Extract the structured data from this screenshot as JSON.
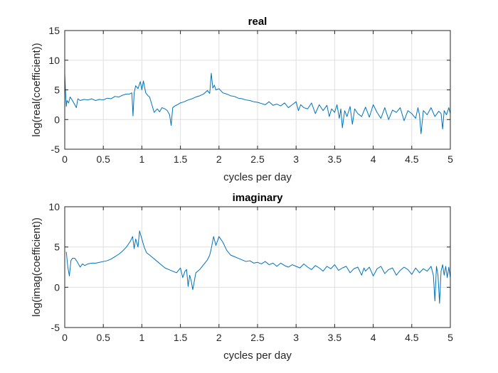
{
  "chart_data": [
    {
      "type": "line",
      "title": "real",
      "xlabel": "cycles per day",
      "ylabel": "log(real(coefficient))",
      "xlim": [
        0,
        5
      ],
      "ylim": [
        -5,
        15
      ],
      "xticks": [
        0,
        0.5,
        1,
        1.5,
        2,
        2.5,
        3,
        3.5,
        4,
        4.5,
        5
      ],
      "xtick_labels": [
        "0",
        "0.5",
        "1",
        "1.5",
        "2",
        "2.5",
        "3",
        "3.5",
        "4",
        "4.5",
        "5"
      ],
      "yticks": [
        -5,
        0,
        5,
        10,
        15
      ],
      "ytick_labels": [
        "-5",
        "0",
        "5",
        "10",
        "15"
      ],
      "grid": true,
      "series_color": "#0072bd",
      "series": [
        {
          "x": [
            0.0,
            0.01,
            0.02,
            0.03,
            0.05,
            0.07,
            0.1,
            0.13,
            0.15,
            0.17,
            0.2,
            0.25,
            0.3,
            0.35,
            0.4,
            0.45,
            0.5,
            0.55,
            0.6,
            0.65,
            0.7,
            0.75,
            0.8,
            0.84,
            0.87,
            0.885,
            0.9,
            0.92,
            0.95,
            0.98,
            1.0,
            1.02,
            1.05,
            1.08,
            1.1,
            1.13,
            1.16,
            1.2,
            1.23,
            1.26,
            1.3,
            1.33,
            1.36,
            1.38,
            1.4,
            1.43,
            1.46,
            1.5,
            1.55,
            1.6,
            1.65,
            1.7,
            1.75,
            1.8,
            1.85,
            1.88,
            1.9,
            1.92,
            1.94,
            1.96,
            2.0,
            2.05,
            2.1,
            2.15,
            2.2,
            2.25,
            2.3,
            2.35,
            2.4,
            2.45,
            2.5,
            2.55,
            2.6,
            2.65,
            2.7,
            2.75,
            2.8,
            2.85,
            2.9,
            2.95,
            3.0,
            3.03,
            3.06,
            3.1,
            3.15,
            3.2,
            3.25,
            3.3,
            3.35,
            3.4,
            3.43,
            3.46,
            3.5,
            3.53,
            3.56,
            3.58,
            3.6,
            3.63,
            3.66,
            3.7,
            3.73,
            3.76,
            3.8,
            3.85,
            3.9,
            3.95,
            4.0,
            4.05,
            4.1,
            4.15,
            4.2,
            4.25,
            4.3,
            4.35,
            4.4,
            4.45,
            4.5,
            4.55,
            4.58,
            4.6,
            4.62,
            4.65,
            4.7,
            4.75,
            4.8,
            4.85,
            4.88,
            4.9,
            4.92,
            4.95,
            4.98,
            5.0
          ],
          "y": [
            7.8,
            4.8,
            2.2,
            3.2,
            2.8,
            3.8,
            3.2,
            2.5,
            2.0,
            3.5,
            3.2,
            3.4,
            3.3,
            3.5,
            3.2,
            3.4,
            3.3,
            3.6,
            3.5,
            3.9,
            3.8,
            4.1,
            4.3,
            4.3,
            4.5,
            0.6,
            4.5,
            5.7,
            5.2,
            6.4,
            5.0,
            6.5,
            4.5,
            4.0,
            3.8,
            2.5,
            1.2,
            1.8,
            1.3,
            2.0,
            1.8,
            1.5,
            0.8,
            -1.0,
            2.0,
            2.3,
            2.5,
            2.8,
            3.0,
            3.3,
            3.5,
            3.8,
            4.0,
            4.3,
            4.9,
            4.4,
            7.8,
            5.3,
            5.8,
            5.0,
            5.2,
            4.5,
            4.3,
            4.0,
            3.9,
            3.6,
            3.5,
            3.3,
            3.2,
            3.0,
            2.9,
            2.7,
            2.5,
            3.0,
            2.4,
            2.6,
            2.3,
            2.8,
            2.0,
            2.5,
            3.0,
            1.5,
            2.5,
            2.0,
            1.8,
            2.8,
            1.0,
            2.5,
            1.5,
            2.4,
            0.5,
            1.8,
            1.2,
            2.5,
            0.2,
            1.8,
            -1.4,
            1.5,
            0.5,
            2.2,
            -0.8,
            1.8,
            1.0,
            0.5,
            2.1,
            0.4,
            2.5,
            1.2,
            0.2,
            2.0,
            0.0,
            1.6,
            1.2,
            2.0,
            -0.2,
            1.5,
            1.0,
            0.2,
            2.0,
            0.8,
            -2.4,
            1.5,
            0.8,
            2.0,
            0.5,
            1.4,
            1.0,
            -1.6,
            1.5,
            0.8,
            2.0,
            1.0
          ]
        }
      ]
    },
    {
      "type": "line",
      "title": "imaginary",
      "xlabel": "cycles per day",
      "ylabel": "log(imag(coefficient))",
      "xlim": [
        0,
        5
      ],
      "ylim": [
        -5,
        10
      ],
      "xticks": [
        0,
        0.5,
        1,
        1.5,
        2,
        2.5,
        3,
        3.5,
        4,
        4.5,
        5
      ],
      "xtick_labels": [
        "0",
        "0.5",
        "1",
        "1.5",
        "2",
        "2.5",
        "3",
        "3.5",
        "4",
        "4.5",
        "5"
      ],
      "yticks": [
        -5,
        0,
        5,
        10
      ],
      "ytick_labels": [
        "-5",
        "0",
        "5",
        "10"
      ],
      "grid": true,
      "series_color": "#0072bd",
      "series": [
        {
          "x": [
            0.02,
            0.04,
            0.06,
            0.08,
            0.1,
            0.13,
            0.16,
            0.2,
            0.23,
            0.26,
            0.3,
            0.35,
            0.4,
            0.45,
            0.5,
            0.55,
            0.6,
            0.65,
            0.7,
            0.75,
            0.8,
            0.85,
            0.88,
            0.9,
            0.92,
            0.95,
            0.97,
            1.0,
            1.03,
            1.06,
            1.1,
            1.15,
            1.2,
            1.25,
            1.3,
            1.35,
            1.4,
            1.45,
            1.5,
            1.53,
            1.56,
            1.58,
            1.6,
            1.62,
            1.64,
            1.66,
            1.7,
            1.75,
            1.8,
            1.85,
            1.88,
            1.9,
            1.93,
            1.96,
            2.0,
            2.05,
            2.1,
            2.15,
            2.2,
            2.25,
            2.3,
            2.35,
            2.4,
            2.45,
            2.5,
            2.55,
            2.6,
            2.65,
            2.7,
            2.75,
            2.8,
            2.85,
            2.9,
            2.95,
            3.0,
            3.05,
            3.1,
            3.15,
            3.2,
            3.25,
            3.3,
            3.35,
            3.4,
            3.45,
            3.5,
            3.55,
            3.6,
            3.65,
            3.7,
            3.75,
            3.8,
            3.85,
            3.88,
            3.9,
            3.95,
            4.0,
            4.05,
            4.1,
            4.15,
            4.2,
            4.25,
            4.3,
            4.35,
            4.4,
            4.45,
            4.5,
            4.55,
            4.6,
            4.65,
            4.7,
            4.75,
            4.78,
            4.8,
            4.82,
            4.84,
            4.86,
            4.88,
            4.9,
            4.92,
            4.94,
            4.96,
            4.98,
            5.0
          ],
          "y": [
            4.4,
            2.5,
            1.4,
            3.3,
            3.6,
            3.6,
            3.2,
            2.5,
            2.9,
            2.7,
            2.9,
            3.0,
            3.0,
            3.1,
            3.2,
            3.3,
            3.5,
            3.8,
            4.1,
            4.5,
            5.0,
            5.7,
            6.3,
            4.8,
            6.0,
            5.0,
            7.0,
            6.0,
            5.0,
            4.3,
            4.0,
            3.6,
            3.2,
            2.8,
            2.4,
            2.2,
            2.0,
            1.8,
            2.4,
            1.2,
            2.0,
            2.2,
            0.1,
            1.5,
            0.8,
            -0.3,
            1.8,
            2.2,
            2.8,
            3.4,
            4.0,
            4.8,
            6.3,
            5.2,
            6.3,
            5.6,
            4.6,
            4.0,
            3.8,
            3.6,
            3.4,
            3.2,
            3.3,
            3.0,
            3.1,
            2.9,
            3.2,
            2.8,
            3.0,
            2.6,
            3.0,
            2.7,
            2.5,
            2.8,
            2.6,
            2.4,
            2.9,
            2.5,
            2.2,
            2.7,
            2.4,
            2.0,
            2.6,
            2.3,
            2.8,
            2.1,
            2.4,
            2.6,
            1.8,
            2.3,
            2.5,
            1.5,
            2.4,
            2.0,
            2.5,
            1.4,
            2.3,
            2.6,
            1.7,
            2.2,
            2.4,
            1.5,
            2.1,
            2.5,
            2.2,
            1.6,
            2.4,
            1.8,
            2.3,
            2.0,
            2.6,
            1.5,
            -1.7,
            2.6,
            1.5,
            -2.0,
            2.0,
            2.8,
            1.5,
            2.6,
            1.2,
            2.5,
            1.2
          ]
        }
      ]
    }
  ]
}
